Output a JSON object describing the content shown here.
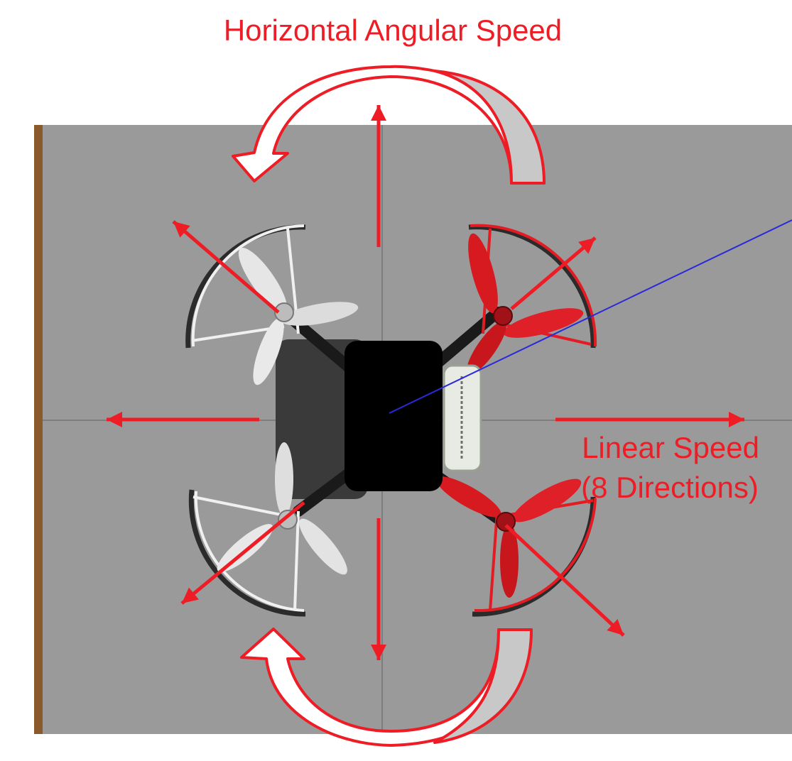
{
  "labels": {
    "angular": "Horizontal Angular Speed",
    "linear_line1": "Linear Speed",
    "linear_line2": "(8 Directions)"
  },
  "colors": {
    "accent": "#ee1c25",
    "floor": "#9a9a9a",
    "body": "#000000",
    "battery": "#e8ebe3",
    "sensor_line": "#2a2ad8",
    "floor_edge": "#8b5a2b",
    "rotor_front": "#e31b23",
    "rotor_rear": "#dcdcdc"
  },
  "icons": {
    "drone": "quadcopter-top-view-icon",
    "arrows": "direction-arrow-icon",
    "rotation": "curved-rotation-arrow-icon"
  }
}
